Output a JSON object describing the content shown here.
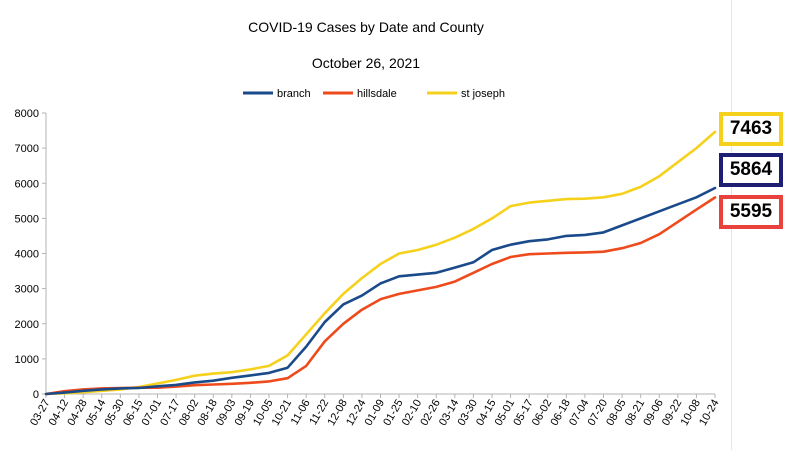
{
  "chart_data": {
    "type": "line",
    "title": "COVID-19 Cases by Date and County",
    "subtitle": "October 26, 2021",
    "xlabel": "",
    "ylabel": "",
    "ylim": [
      0,
      8000
    ],
    "yticks": [
      0,
      1000,
      2000,
      3000,
      4000,
      5000,
      6000,
      7000,
      8000
    ],
    "grid": false,
    "legend": "top-center",
    "x": [
      "03-27",
      "04-12",
      "04-28",
      "05-14",
      "05-30",
      "06-15",
      "07-01",
      "07-17",
      "08-02",
      "08-18",
      "09-03",
      "09-19",
      "10-05",
      "10-21",
      "11-06",
      "11-22",
      "12-08",
      "12-24",
      "01-09",
      "01-25",
      "02-10",
      "02-26",
      "03-14",
      "03-30",
      "04-15",
      "05-01",
      "05-17",
      "06-02",
      "06-18",
      "07-04",
      "07-20",
      "08-05",
      "08-21",
      "09-06",
      "09-22",
      "10-08",
      "10-24"
    ],
    "series": [
      {
        "name": "branch",
        "color": "#1a4a8a",
        "values": [
          0,
          40,
          90,
          130,
          160,
          170,
          220,
          260,
          330,
          380,
          460,
          530,
          600,
          750,
          1350,
          2050,
          2550,
          2800,
          3150,
          3350,
          3400,
          3450,
          3600,
          3750,
          4100,
          4250,
          4350,
          4400,
          4500,
          4530,
          4600,
          4800,
          5000,
          5200,
          5400,
          5600,
          5864
        ]
      },
      {
        "name": "hillsdale",
        "color": "#ee4a1c",
        "values": [
          0,
          80,
          130,
          160,
          170,
          180,
          180,
          210,
          250,
          270,
          290,
          320,
          360,
          450,
          800,
          1500,
          2000,
          2400,
          2700,
          2850,
          2950,
          3050,
          3200,
          3450,
          3700,
          3900,
          3980,
          4000,
          4020,
          4030,
          4050,
          4150,
          4300,
          4550,
          4900,
          5250,
          5595
        ]
      },
      {
        "name": "st joseph",
        "color": "#f6d11c",
        "values": [
          0,
          20,
          50,
          90,
          130,
          200,
          300,
          400,
          520,
          580,
          620,
          700,
          800,
          1100,
          1700,
          2300,
          2850,
          3300,
          3700,
          4000,
          4100,
          4250,
          4450,
          4700,
          5000,
          5350,
          5450,
          5500,
          5550,
          5560,
          5600,
          5700,
          5900,
          6200,
          6600,
          7000,
          7463
        ]
      }
    ],
    "callouts": [
      {
        "series": "st joseph",
        "text": "7463",
        "border": "#f6d11c"
      },
      {
        "series": "branch",
        "text": "5864",
        "border": "#1e1e72"
      },
      {
        "series": "hillsdale",
        "text": "5595",
        "border": "#e8423a"
      }
    ]
  }
}
